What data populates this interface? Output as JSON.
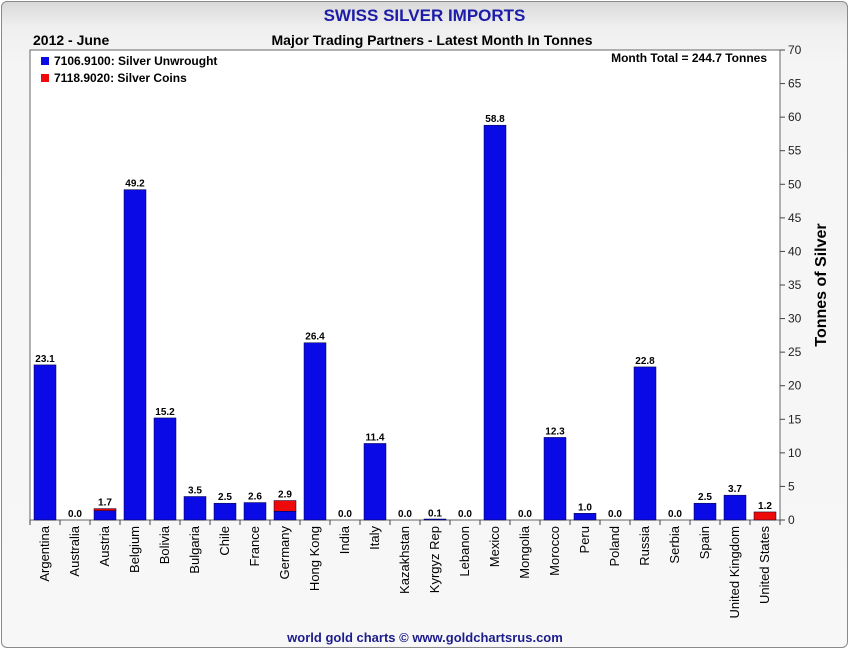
{
  "chart_title": "SWISS SILVER IMPORTS",
  "period": "2012 - June",
  "subtitle": "Major Trading Partners - Latest Month In Tonnes",
  "month_total": "Month Total = 244.7 Tonnes",
  "footer": "world gold charts © www.goldchartsrus.com",
  "colors": {
    "unwrought": "#0a0ae6",
    "coins": "#ee0a0a"
  },
  "chart_data": {
    "type": "bar",
    "stacked": true,
    "title": "SWISS SILVER IMPORTS",
    "subtitle": "Major Trading Partners - Latest Month In Tonnes",
    "ylabel": "Tonnes of Silver",
    "ylim": [
      0,
      70
    ],
    "yticks": [
      0,
      5,
      10,
      15,
      20,
      25,
      30,
      35,
      40,
      45,
      50,
      55,
      60,
      65,
      70
    ],
    "legend_position": "top-left",
    "categories": [
      "Argentina",
      "Australia",
      "Austria",
      "Belgium",
      "Bolivia",
      "Bulgaria",
      "Chile",
      "France",
      "Germany",
      "Hong Kong",
      "India",
      "Italy",
      "Kazakhstan",
      "Kyrgyz Rep",
      "Lebanon",
      "Mexico",
      "Mongolia",
      "Morocco",
      "Peru",
      "Poland",
      "Russia",
      "Serbia",
      "Spain",
      "United Kingdom",
      "United States"
    ],
    "series": [
      {
        "name": "7106.9100: Silver Unwrought",
        "color": "#0a0ae6",
        "values": [
          23.1,
          0.0,
          1.4,
          49.2,
          15.2,
          3.5,
          2.5,
          2.6,
          1.3,
          26.4,
          0.0,
          11.4,
          0.0,
          0.1,
          0.0,
          58.8,
          0.0,
          12.3,
          1.0,
          0.0,
          22.8,
          0.0,
          2.5,
          3.7,
          0.0
        ]
      },
      {
        "name": "7118.9020: Silver Coins",
        "color": "#ee0a0a",
        "values": [
          0.0,
          0.0,
          0.3,
          0.0,
          0.0,
          0.0,
          0.0,
          0.0,
          1.6,
          0.0,
          0.0,
          0.0,
          0.0,
          0.0,
          0.0,
          0.0,
          0.0,
          0.0,
          0.0,
          0.0,
          0.0,
          0.0,
          0.0,
          0.0,
          1.2
        ]
      }
    ],
    "totals": [
      "23.1",
      "0.0",
      "1.7",
      "49.2",
      "15.2",
      "3.5",
      "2.5",
      "2.6",
      "2.9",
      "26.4",
      "0.0",
      "11.4",
      "0.0",
      "0.1",
      "0.0",
      "58.8",
      "0.0",
      "12.3",
      "1.0",
      "0.0",
      "22.8",
      "0.0",
      "2.5",
      "3.7",
      "1.2"
    ]
  }
}
